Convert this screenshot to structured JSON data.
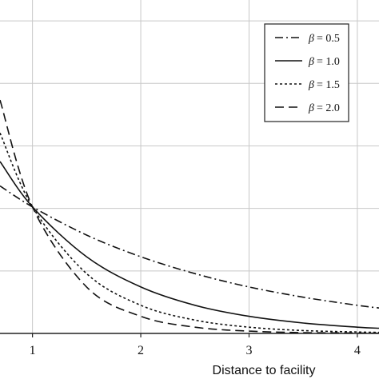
{
  "chart_data": {
    "type": "line",
    "title": "",
    "xlabel": "Distance to facility",
    "ylabel": "",
    "xlim": [
      0.7,
      4.2
    ],
    "ylim": [
      0.0,
      1.6
    ],
    "xticks": [
      1,
      2,
      3,
      4
    ],
    "xtick_labels": [
      "1",
      "2",
      "3",
      "4"
    ],
    "yticks": [
      0.0,
      0.3,
      0.6,
      0.9,
      1.2,
      1.5
    ],
    "grid": true,
    "legend_position": "top-right",
    "legend_symbol": "β",
    "series": [
      {
        "name": "β = 0.5",
        "legend_label": "= 0.5",
        "style": "dash-dot",
        "x": [
          0.7,
          1.0,
          1.5,
          2.0,
          2.5,
          3.0,
          3.5,
          4.0,
          4.2
        ],
        "y": [
          0.708,
          0.607,
          0.472,
          0.368,
          0.287,
          0.223,
          0.174,
          0.135,
          0.122
        ]
      },
      {
        "name": "β = 1.0",
        "legend_label": "= 1.0",
        "style": "solid",
        "x": [
          0.7,
          1.0,
          1.5,
          2.0,
          2.5,
          3.0,
          3.5,
          4.0,
          4.2
        ],
        "y": [
          0.825,
          0.607,
          0.368,
          0.223,
          0.135,
          0.082,
          0.05,
          0.03,
          0.025
        ]
      },
      {
        "name": "β = 1.5",
        "legend_label": "= 1.5",
        "style": "dotted",
        "x": [
          0.7,
          1.0,
          1.5,
          2.0,
          2.5,
          3.0,
          3.5,
          4.0,
          4.2
        ],
        "y": [
          0.962,
          0.607,
          0.287,
          0.135,
          0.064,
          0.03,
          0.014,
          0.007,
          0.005
        ]
      },
      {
        "name": "β = 2.0",
        "legend_label": "= 2.0",
        "style": "dashed",
        "x": [
          0.7,
          1.0,
          1.5,
          2.0,
          2.5,
          3.0,
          3.5,
          4.0,
          4.2
        ],
        "y": [
          1.12,
          0.607,
          0.223,
          0.082,
          0.03,
          0.011,
          0.004,
          0.002,
          0.001
        ]
      }
    ]
  }
}
